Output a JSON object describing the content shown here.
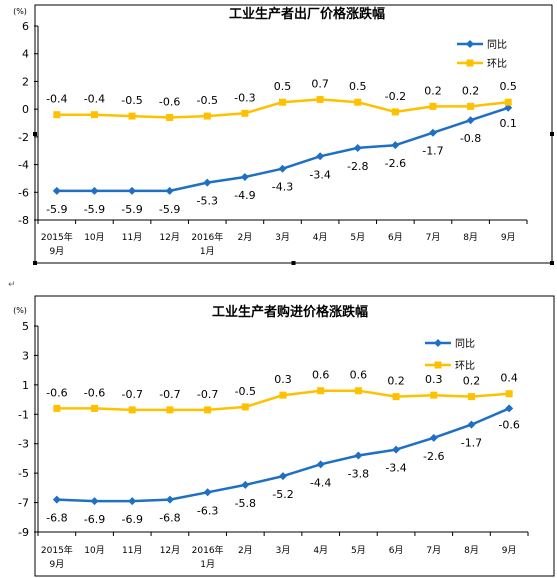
{
  "colors": {
    "yoy": "#1F6FC5",
    "mom": "#FFC000",
    "axis": "#000000",
    "frame": "#000000",
    "text": "#000000"
  },
  "chart_data": [
    {
      "type": "line",
      "title": "工业生产者出厂价格涨跌幅",
      "unit_label": "(%)",
      "categories": [
        "2015年\n9月",
        "10月",
        "11月",
        "12月",
        "2016年\n1月",
        "2月",
        "3月",
        "4月",
        "5月",
        "6月",
        "7月",
        "8月",
        "9月"
      ],
      "ylim": [
        -8,
        6
      ],
      "yticks": [
        -8,
        -6,
        -4,
        -2,
        0,
        2,
        4,
        6
      ],
      "grid": false,
      "legend": "top-right",
      "series": [
        {
          "name": "同比",
          "marker": "diamond",
          "values": [
            -5.9,
            -5.9,
            -5.9,
            -5.9,
            -5.3,
            -4.9,
            -4.3,
            -3.4,
            -2.8,
            -2.6,
            -1.7,
            -0.8,
            0.1
          ]
        },
        {
          "name": "环比",
          "marker": "square",
          "values": [
            -0.4,
            -0.4,
            -0.5,
            -0.6,
            -0.5,
            -0.3,
            0.5,
            0.7,
            0.5,
            -0.2,
            0.2,
            0.2,
            0.5
          ]
        }
      ]
    },
    {
      "type": "line",
      "title": "工业生产者购进价格涨跌幅",
      "unit_label": "(%)",
      "categories": [
        "2015年\n9月",
        "10月",
        "11月",
        "12月",
        "2016年\n1月",
        "2月",
        "3月",
        "4月",
        "5月",
        "6月",
        "7月",
        "8月",
        "9月"
      ],
      "ylim": [
        -9,
        5
      ],
      "yticks": [
        -9,
        -7,
        -5,
        -3,
        -1,
        1,
        3,
        5
      ],
      "grid": false,
      "legend": "top-right",
      "series": [
        {
          "name": "同比",
          "marker": "diamond",
          "values": [
            -6.8,
            -6.9,
            -6.9,
            -6.8,
            -6.3,
            -5.8,
            -5.2,
            -4.4,
            -3.8,
            -3.4,
            -2.6,
            -1.7,
            -0.6
          ]
        },
        {
          "name": "环比",
          "marker": "square",
          "values": [
            -0.6,
            -0.6,
            -0.7,
            -0.7,
            -0.7,
            -0.5,
            0.3,
            0.6,
            0.6,
            0.2,
            0.3,
            0.2,
            0.4
          ]
        }
      ]
    }
  ]
}
